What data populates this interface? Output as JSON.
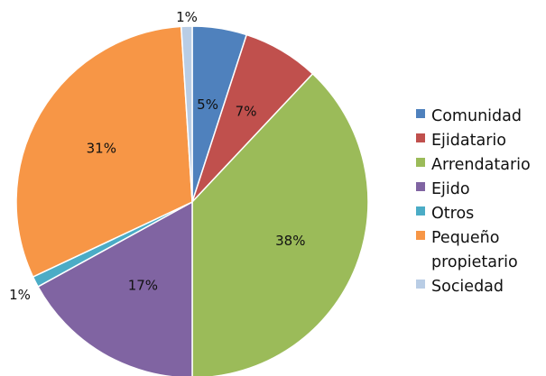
{
  "chart_data": {
    "type": "pie",
    "slices": [
      {
        "label": "Comunidad",
        "value": 5,
        "value_label": "5%",
        "color": "#4f81bd"
      },
      {
        "label": "Ejidatario",
        "value": 7,
        "value_label": "7%",
        "color": "#c0504d"
      },
      {
        "label": "Arrendatario",
        "value": 38,
        "value_label": "38%",
        "color": "#9bbb59"
      },
      {
        "label": "Ejido",
        "value": 17,
        "value_label": "17%",
        "color": "#8064a2"
      },
      {
        "label": "Otros",
        "value": 1,
        "value_label": "1%",
        "color": "#4bacc6"
      },
      {
        "label": "Pequeño propietario",
        "value": 31,
        "value_label": "31%",
        "color": "#f79646"
      },
      {
        "label": "Sociedad",
        "value": 1,
        "value_label": "1%",
        "color": "#b9cde5"
      }
    ],
    "legend_position": "right"
  }
}
